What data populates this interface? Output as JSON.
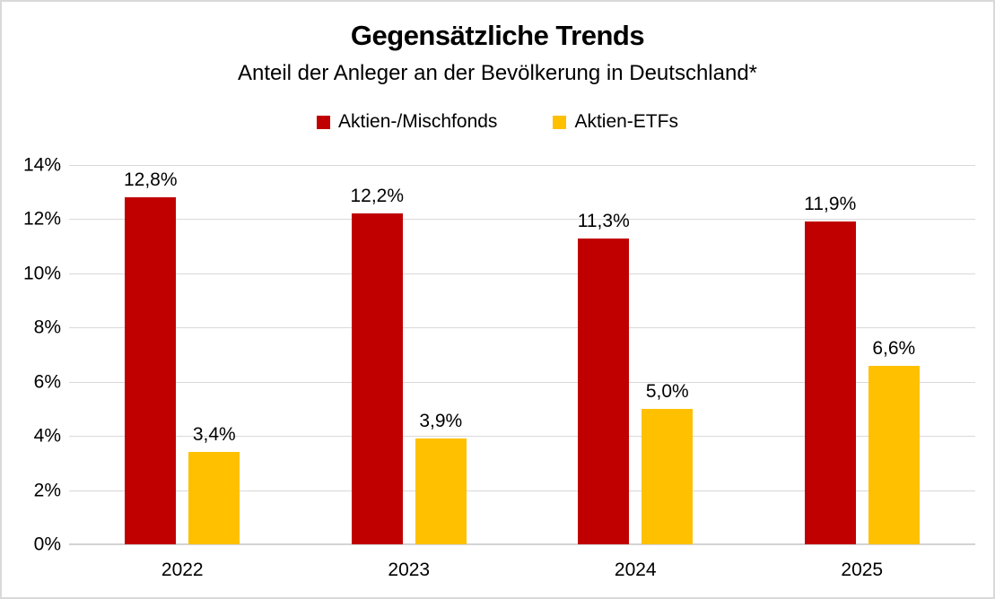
{
  "chart": {
    "title": "Gegensätzliche Trends",
    "subtitle": "Anteil der Anleger an der Bevölkerung in Deutschland*"
  },
  "chart_data": {
    "type": "bar",
    "title": "Gegensätzliche Trends",
    "subtitle": "Anteil der Anleger an der Bevölkerung in Deutschland*",
    "categories": [
      "2022",
      "2023",
      "2024",
      "2025"
    ],
    "series": [
      {
        "name": "Aktien-/Mischfonds",
        "color": "#C00000",
        "values": [
          12.8,
          12.2,
          11.3,
          11.9
        ],
        "labels": [
          "12,8%",
          "12,2%",
          "11,3%",
          "11,9%"
        ]
      },
      {
        "name": "Aktien-ETFs",
        "color": "#FFC000",
        "values": [
          3.4,
          3.9,
          5.0,
          6.6
        ],
        "labels": [
          "3,4%",
          "3,9%",
          "5,0%",
          "6,6%"
        ]
      }
    ],
    "xlabel": "",
    "ylabel": "",
    "ylim": [
      0,
      14
    ],
    "yticks_top_down": [
      "14%",
      "12%",
      "10%",
      "8%",
      "6%",
      "4%",
      "2%",
      "0%"
    ],
    "grid": true,
    "legend_position": "top",
    "colors": {
      "gridline": "#D9D9D9",
      "frame_border": "#D9D9D9",
      "text": "#000000"
    }
  }
}
